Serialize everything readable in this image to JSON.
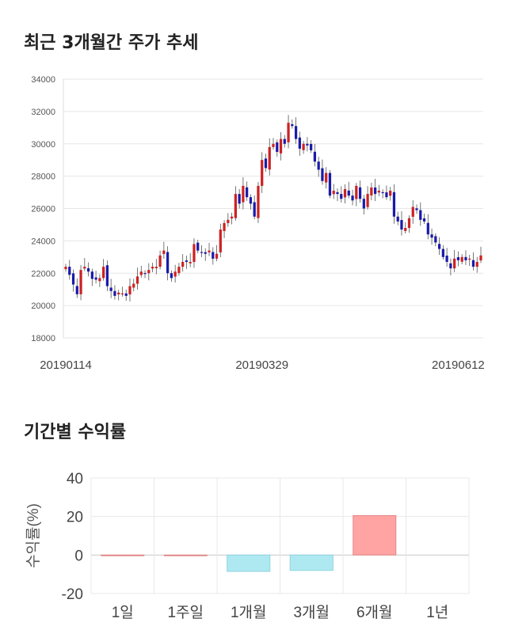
{
  "titles": {
    "price_trend": "최근 3개월간 주가 추세",
    "returns": "기간별 수익률"
  },
  "chart_data": [
    {
      "type": "candlestick",
      "ylim": [
        18000,
        34000
      ],
      "yticks": [
        "34000",
        "32000",
        "30000",
        "28000",
        "26000",
        "24000",
        "22000",
        "20000",
        "18000"
      ],
      "xticks": [
        "20190114",
        "20190329",
        "20190612"
      ],
      "xtick_index": [
        0,
        52,
        104
      ],
      "grid": true,
      "colors": {
        "up": "#cc2222",
        "down": "#1a1aaa",
        "wick": "#555555",
        "grid": "#e6e6e6"
      },
      "close": [
        22400,
        21900,
        21300,
        20700,
        22200,
        22400,
        22100,
        21650,
        21600,
        21700,
        22400,
        21200,
        20900,
        20600,
        20800,
        20750,
        20600,
        21200,
        21350,
        21800,
        22100,
        22000,
        22200,
        22400,
        22400,
        23100,
        23400,
        22000,
        21700,
        22100,
        22400,
        22700,
        22700,
        22700,
        23800,
        23400,
        23300,
        23200,
        23400,
        22900,
        23200,
        24700,
        25100,
        25300,
        25500,
        26900,
        26300,
        27400,
        26700,
        26300,
        25500,
        27400,
        29000,
        28500,
        29800,
        30000,
        29500,
        30300,
        30000,
        31300,
        31100,
        30300,
        29700,
        30000,
        29900,
        29600,
        28900,
        28400,
        27700,
        28200,
        26800,
        27100,
        26900,
        26600,
        27200,
        26800,
        26500,
        27400,
        26600,
        26000,
        26900,
        27300,
        26900,
        27100,
        27000,
        26700,
        27100,
        25500,
        25200,
        24700,
        24800,
        25400,
        26100,
        25900,
        25300,
        25200,
        24400,
        24200,
        23900,
        23500,
        23000,
        22700,
        22300,
        22900,
        22800,
        23000,
        22800,
        22900,
        22400,
        22700,
        23100
      ]
    },
    {
      "type": "bar",
      "categories": [
        "1일",
        "1주일",
        "1개월",
        "3개월",
        "6개월",
        "1년"
      ],
      "values": [
        0,
        0,
        -8.5,
        -8,
        20.5,
        null
      ],
      "ylabel": "수익률(%)",
      "ylim": [
        -20,
        40
      ],
      "yticks": [
        "40",
        "20",
        "0",
        "-20"
      ],
      "colors": {
        "positive": "#ffa3a3",
        "negative": "#aee9f2",
        "grid": "#e8e8e8"
      }
    }
  ]
}
